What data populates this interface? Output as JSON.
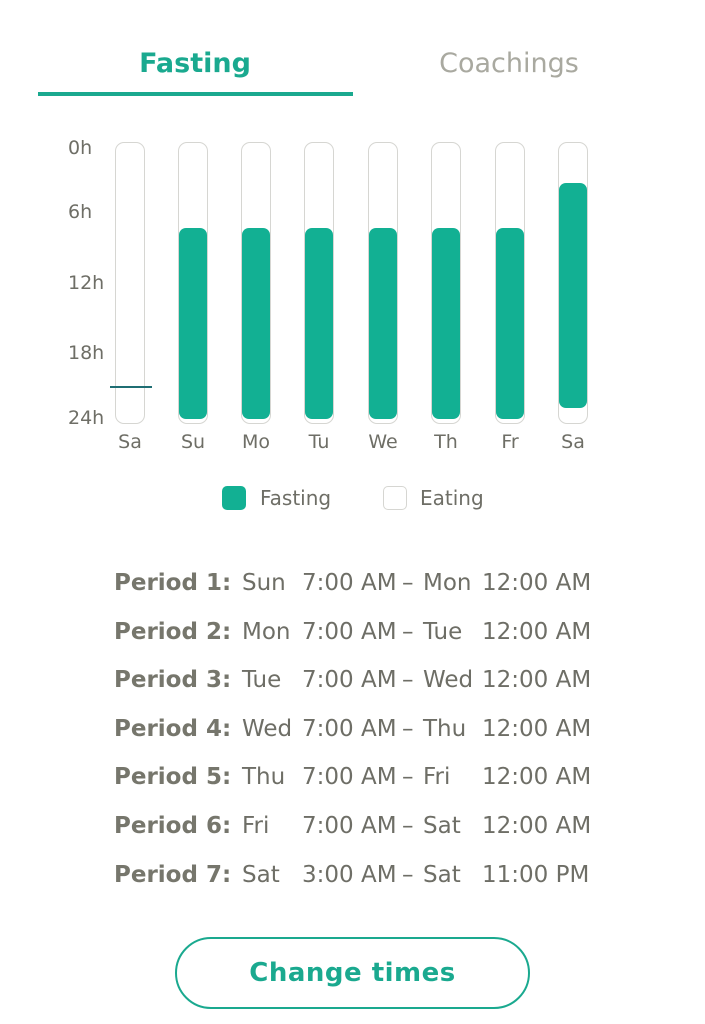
{
  "tabs": [
    {
      "label": "Fasting",
      "active": true
    },
    {
      "label": "Coachings",
      "active": false
    }
  ],
  "colors": {
    "accent": "#1aa98f",
    "fasting_fill": "#12b093",
    "inactive_tab": "#a9a9a0",
    "marker": "#1f6e73"
  },
  "chart_data": {
    "type": "bar",
    "title": "",
    "y_ticks": [
      "0h",
      "6h",
      "12h",
      "18h",
      "24h"
    ],
    "categories": [
      "Sa",
      "Su",
      "Mo",
      "Tu",
      "We",
      "Th",
      "Fr",
      "Sa"
    ],
    "series": [
      {
        "name": "Fasting",
        "values": [
          0,
          17,
          17,
          17,
          17,
          17,
          17,
          20
        ]
      }
    ],
    "fasting_start_hour": [
      null,
      7,
      7,
      7,
      7,
      7,
      7,
      3
    ],
    "fasting_end_hour": [
      null,
      24,
      24,
      24,
      24,
      24,
      24,
      23
    ],
    "current_time_hour": 20.5,
    "ylim": [
      0,
      24
    ],
    "legend": [
      {
        "label": "Fasting",
        "swatch": "fasting"
      },
      {
        "label": "Eating",
        "swatch": "eating"
      }
    ]
  },
  "periods": [
    {
      "label": "Period 1:",
      "start_day": "Sun",
      "start_time": "7:00 AM",
      "dash": "–",
      "end_day": "Mon",
      "end_time": "12:00 AM"
    },
    {
      "label": "Period 2:",
      "start_day": "Mon",
      "start_time": "7:00 AM",
      "dash": "–",
      "end_day": "Tue",
      "end_time": "12:00 AM"
    },
    {
      "label": "Period 3:",
      "start_day": "Tue",
      "start_time": "7:00 AM",
      "dash": "–",
      "end_day": "Wed",
      "end_time": "12:00 AM"
    },
    {
      "label": "Period 4:",
      "start_day": "Wed",
      "start_time": "7:00 AM",
      "dash": "–",
      "end_day": "Thu",
      "end_time": "12:00 AM"
    },
    {
      "label": "Period 5:",
      "start_day": "Thu",
      "start_time": "7:00 AM",
      "dash": "–",
      "end_day": "Fri",
      "end_time": "12:00 AM"
    },
    {
      "label": "Period 6:",
      "start_day": "Fri",
      "start_time": "7:00 AM",
      "dash": "–",
      "end_day": "Sat",
      "end_time": "12:00 AM"
    },
    {
      "label": "Period 7:",
      "start_day": "Sat",
      "start_time": "3:00 AM",
      "dash": "–",
      "end_day": "Sat",
      "end_time": "11:00 PM"
    }
  ],
  "button": {
    "label": "Change times"
  }
}
